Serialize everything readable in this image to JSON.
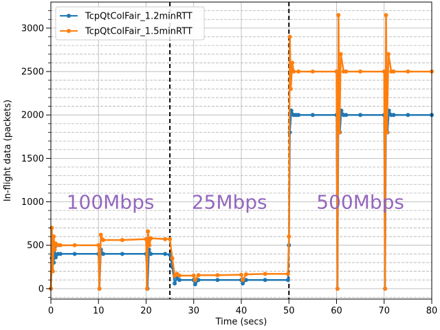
{
  "chart_data": {
    "type": "line",
    "xlabel": "Time (secs)",
    "ylabel": "In-flight data (packets)",
    "xlim": [
      0,
      80
    ],
    "ylim": [
      -120,
      3300
    ],
    "xticks": [
      0,
      10,
      20,
      30,
      40,
      50,
      60,
      70,
      80
    ],
    "yticks": [
      0,
      500,
      1000,
      1500,
      2000,
      2500,
      3000
    ],
    "y_minor_step": 100,
    "grid": true,
    "legend_position": "top-left",
    "vlines": [
      25,
      50
    ],
    "annotations": [
      {
        "text": "100Mbps",
        "x": 12.5,
        "y": 1000
      },
      {
        "text": "25Mbps",
        "x": 37.5,
        "y": 1000
      },
      {
        "text": "500Mbps",
        "x": 65,
        "y": 1000
      }
    ],
    "series": [
      {
        "name": "TcpQtColFair_1.2minRTT",
        "color": "#1f77b4",
        "x": [
          0,
          0.2,
          0.4,
          0.6,
          0.8,
          1.0,
          1.5,
          2,
          5,
          10,
          10.2,
          10.5,
          11,
          15,
          20,
          20.3,
          20.6,
          21,
          24,
          25,
          25.5,
          26,
          26.5,
          27,
          30,
          30.3,
          31,
          35,
          40,
          40.3,
          41,
          45,
          49.8,
          50,
          50.2,
          50.5,
          51,
          51.5,
          52,
          55,
          60,
          60.2,
          60.4,
          60.7,
          61,
          61.5,
          62,
          65,
          70,
          70.2,
          70.4,
          70.7,
          71,
          71.5,
          72,
          75,
          80
        ],
        "y": [
          0,
          350,
          600,
          300,
          480,
          360,
          400,
          400,
          400,
          400,
          0,
          450,
          400,
          400,
          400,
          0,
          450,
          400,
          400,
          390,
          250,
          60,
          120,
          100,
          100,
          50,
          100,
          100,
          100,
          60,
          100,
          100,
          100,
          500,
          1800,
          2050,
          2000,
          2000,
          2000,
          2000,
          2000,
          0,
          2150,
          1800,
          2050,
          2000,
          2000,
          2000,
          2000,
          0,
          2150,
          1800,
          2050,
          2000,
          2000,
          2000,
          2000
        ]
      },
      {
        "name": "TcpQtColFair_1.5minRTT",
        "color": "#ff7f0e",
        "x": [
          0,
          0.2,
          0.4,
          0.6,
          0.8,
          1.0,
          1.5,
          2,
          5,
          10,
          10.2,
          10.5,
          11,
          15,
          20,
          20.2,
          20.4,
          20.7,
          21,
          24,
          25,
          25.5,
          26,
          26.5,
          27,
          30,
          30.3,
          31,
          35,
          40,
          40.3,
          41,
          45,
          49.8,
          50,
          50.2,
          50.4,
          50.7,
          51,
          52,
          55,
          60,
          60.2,
          60.4,
          60.6,
          60.9,
          61.5,
          62,
          65,
          70,
          70.2,
          70.4,
          70.6,
          70.9,
          71.5,
          72,
          75,
          80
        ],
        "y": [
          0,
          700,
          200,
          600,
          450,
          520,
          500,
          500,
          500,
          500,
          0,
          620,
          560,
          560,
          570,
          0,
          660,
          500,
          580,
          570,
          570,
          350,
          150,
          170,
          150,
          150,
          100,
          155,
          155,
          160,
          100,
          165,
          170,
          170,
          600,
          2900,
          2300,
          2600,
          2500,
          2500,
          2500,
          2500,
          0,
          3150,
          1800,
          2700,
          2500,
          2500,
          2500,
          2500,
          0,
          3150,
          1800,
          2700,
          2500,
          2500,
          2500,
          2500
        ]
      }
    ]
  }
}
